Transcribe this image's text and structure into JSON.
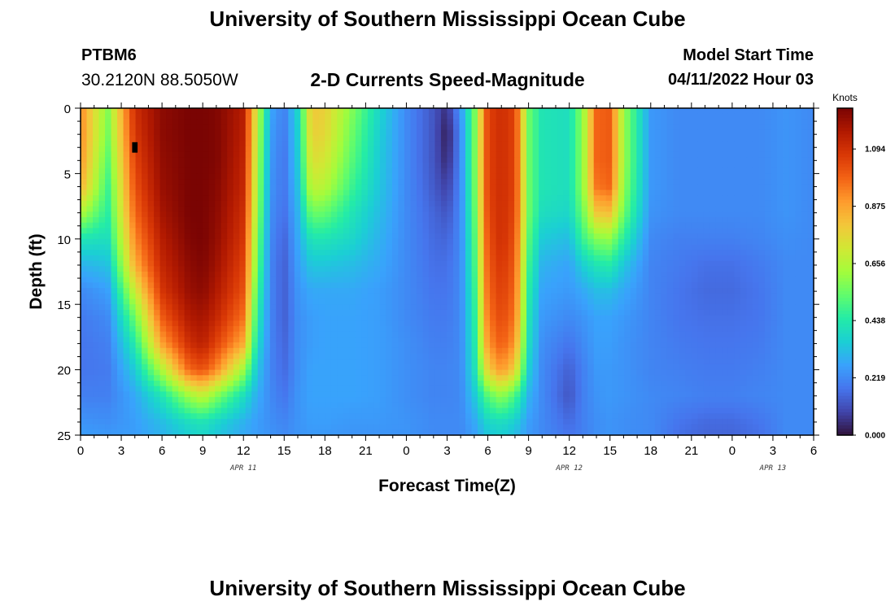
{
  "header": {
    "title": "University of Southern Mississippi Ocean Cube",
    "station_id": "PTBM6",
    "coordinates": "30.2120N  88.5050W",
    "subtitle": "2-D Currents Speed-Magnitude",
    "model_start_label": "Model Start Time",
    "model_start_value": "04/11/2022 Hour 03"
  },
  "footer": {
    "title": "University of Southern Mississippi Ocean Cube"
  },
  "colors": {
    "colormap": [
      "#30123b",
      "#4145ab",
      "#4675ed",
      "#39a2fc",
      "#1bcfd4",
      "#24eca6",
      "#61fc6c",
      "#a4fc3b",
      "#d1e834",
      "#f3c63a",
      "#fe9b2d",
      "#f36315",
      "#d93806",
      "#b11901",
      "#7a0403"
    ],
    "missing": "#000000"
  },
  "chart_data": {
    "type": "heatmap",
    "xlabel": "Forecast Time(Z)",
    "ylabel": "Depth (ft)",
    "xlim": [
      0,
      54
    ],
    "ylim": [
      0,
      25
    ],
    "y_inverted": true,
    "x_tick_labels": [
      "0",
      "3",
      "6",
      "9",
      "12",
      "15",
      "18",
      "21",
      "0",
      "3",
      "6",
      "9",
      "12",
      "15",
      "18",
      "21",
      "0",
      "3",
      "6"
    ],
    "y_tick_labels": [
      "0",
      "5",
      "10",
      "15",
      "20",
      "25"
    ],
    "date_labels": [
      {
        "hour": 12,
        "label": "APR 11"
      },
      {
        "hour": 36,
        "label": "APR 12"
      },
      {
        "hour": 51,
        "label": "APR 13"
      }
    ],
    "colorbar": {
      "label": "Knots",
      "range": [
        0,
        1.25
      ],
      "tick_values": [
        0.0,
        0.219,
        0.438,
        0.656,
        0.875,
        1.094
      ],
      "tick_labels": [
        "0.000",
        "0.219",
        "0.438",
        "0.656",
        "0.875",
        "1.094"
      ]
    },
    "x_hours": [
      0,
      2,
      4,
      6,
      8,
      9,
      10,
      12,
      13,
      14,
      15,
      16,
      17,
      18,
      20,
      22,
      24,
      26,
      27,
      28,
      29,
      30,
      31,
      32,
      33,
      34,
      36,
      37,
      38,
      39,
      40,
      42,
      44,
      46,
      48,
      50,
      52,
      54
    ],
    "depths": [
      0,
      2,
      4,
      6,
      8,
      10,
      12,
      14,
      16,
      18,
      20,
      22,
      24,
      25
    ],
    "values": [
      [
        0.92,
        0.58,
        1.1,
        1.22,
        1.25,
        1.25,
        1.24,
        1.15,
        0.7,
        0.28,
        0.2,
        0.38,
        0.8,
        0.78,
        0.58,
        0.38,
        0.22,
        0.12,
        0.05,
        0.25,
        0.55,
        1.05,
        1.1,
        1.05,
        0.55,
        0.42,
        0.4,
        0.6,
        0.98,
        1.0,
        0.62,
        0.25,
        0.22,
        0.22,
        0.22,
        0.22,
        0.24,
        0.22
      ],
      [
        0.92,
        0.56,
        1.08,
        1.22,
        1.25,
        1.25,
        1.24,
        1.14,
        0.68,
        0.26,
        0.19,
        0.36,
        0.78,
        0.76,
        0.55,
        0.36,
        0.22,
        0.12,
        0.02,
        0.22,
        0.55,
        1.05,
        1.1,
        1.05,
        0.55,
        0.42,
        0.4,
        0.6,
        0.98,
        1.0,
        0.62,
        0.25,
        0.22,
        0.22,
        0.22,
        0.22,
        0.24,
        0.22
      ],
      [
        0.9,
        0.52,
        1.05,
        1.21,
        1.25,
        1.25,
        1.24,
        1.13,
        0.66,
        0.25,
        0.18,
        0.35,
        0.74,
        0.72,
        0.52,
        0.35,
        0.22,
        0.12,
        0.04,
        0.22,
        0.55,
        1.05,
        1.1,
        1.05,
        0.55,
        0.42,
        0.4,
        0.6,
        0.98,
        1.0,
        0.62,
        0.25,
        0.22,
        0.22,
        0.22,
        0.22,
        0.24,
        0.22
      ],
      [
        0.85,
        0.48,
        1.02,
        1.2,
        1.25,
        1.25,
        1.23,
        1.12,
        0.64,
        0.24,
        0.18,
        0.33,
        0.68,
        0.66,
        0.48,
        0.34,
        0.22,
        0.13,
        0.08,
        0.22,
        0.54,
        1.05,
        1.1,
        1.05,
        0.55,
        0.42,
        0.4,
        0.6,
        0.95,
        0.98,
        0.6,
        0.25,
        0.22,
        0.22,
        0.22,
        0.22,
        0.24,
        0.22
      ],
      [
        0.65,
        0.45,
        0.98,
        1.18,
        1.25,
        1.25,
        1.22,
        1.1,
        0.62,
        0.23,
        0.17,
        0.3,
        0.55,
        0.54,
        0.42,
        0.32,
        0.22,
        0.15,
        0.12,
        0.22,
        0.52,
        1.04,
        1.1,
        1.04,
        0.55,
        0.4,
        0.38,
        0.55,
        0.8,
        0.82,
        0.55,
        0.24,
        0.22,
        0.22,
        0.22,
        0.22,
        0.24,
        0.22
      ],
      [
        0.42,
        0.4,
        0.92,
        1.15,
        1.24,
        1.25,
        1.21,
        1.08,
        0.58,
        0.22,
        0.15,
        0.28,
        0.42,
        0.42,
        0.38,
        0.3,
        0.22,
        0.16,
        0.15,
        0.22,
        0.5,
        1.02,
        1.1,
        1.02,
        0.52,
        0.35,
        0.32,
        0.48,
        0.58,
        0.6,
        0.45,
        0.22,
        0.2,
        0.2,
        0.2,
        0.21,
        0.23,
        0.22
      ],
      [
        0.3,
        0.33,
        0.85,
        1.12,
        1.22,
        1.24,
        1.19,
        1.05,
        0.55,
        0.21,
        0.14,
        0.26,
        0.34,
        0.34,
        0.32,
        0.28,
        0.22,
        0.17,
        0.17,
        0.22,
        0.48,
        1.0,
        1.08,
        1.0,
        0.48,
        0.3,
        0.27,
        0.36,
        0.42,
        0.44,
        0.34,
        0.21,
        0.19,
        0.17,
        0.17,
        0.19,
        0.22,
        0.22
      ],
      [
        0.22,
        0.26,
        0.7,
        1.08,
        1.2,
        1.22,
        1.16,
        1.02,
        0.5,
        0.21,
        0.14,
        0.24,
        0.28,
        0.28,
        0.28,
        0.26,
        0.22,
        0.18,
        0.18,
        0.22,
        0.46,
        0.98,
        1.06,
        0.98,
        0.45,
        0.27,
        0.25,
        0.28,
        0.32,
        0.32,
        0.28,
        0.21,
        0.18,
        0.16,
        0.16,
        0.18,
        0.22,
        0.22
      ],
      [
        0.19,
        0.22,
        0.55,
        1.0,
        1.16,
        1.18,
        1.12,
        0.96,
        0.45,
        0.21,
        0.14,
        0.23,
        0.26,
        0.27,
        0.27,
        0.26,
        0.22,
        0.19,
        0.19,
        0.22,
        0.44,
        0.95,
        1.04,
        0.95,
        0.42,
        0.25,
        0.22,
        0.24,
        0.27,
        0.27,
        0.25,
        0.21,
        0.18,
        0.17,
        0.17,
        0.18,
        0.22,
        0.22
      ],
      [
        0.18,
        0.2,
        0.44,
        0.88,
        1.1,
        1.14,
        1.05,
        0.86,
        0.4,
        0.21,
        0.15,
        0.23,
        0.26,
        0.27,
        0.27,
        0.26,
        0.23,
        0.2,
        0.2,
        0.22,
        0.42,
        0.9,
        1.0,
        0.9,
        0.4,
        0.23,
        0.18,
        0.22,
        0.26,
        0.26,
        0.24,
        0.21,
        0.19,
        0.18,
        0.18,
        0.19,
        0.22,
        0.22
      ],
      [
        0.18,
        0.19,
        0.35,
        0.65,
        0.98,
        1.02,
        0.92,
        0.62,
        0.34,
        0.21,
        0.16,
        0.23,
        0.27,
        0.27,
        0.27,
        0.26,
        0.23,
        0.21,
        0.21,
        0.22,
        0.4,
        0.78,
        0.9,
        0.78,
        0.36,
        0.22,
        0.14,
        0.2,
        0.25,
        0.25,
        0.24,
        0.21,
        0.2,
        0.19,
        0.19,
        0.2,
        0.22,
        0.22
      ],
      [
        0.2,
        0.2,
        0.28,
        0.42,
        0.62,
        0.68,
        0.58,
        0.4,
        0.29,
        0.22,
        0.18,
        0.24,
        0.27,
        0.27,
        0.27,
        0.26,
        0.23,
        0.21,
        0.21,
        0.22,
        0.34,
        0.52,
        0.6,
        0.5,
        0.3,
        0.22,
        0.12,
        0.2,
        0.24,
        0.25,
        0.24,
        0.22,
        0.21,
        0.2,
        0.2,
        0.21,
        0.22,
        0.22
      ],
      [
        0.24,
        0.23,
        0.26,
        0.32,
        0.4,
        0.42,
        0.38,
        0.3,
        0.26,
        0.23,
        0.21,
        0.24,
        0.26,
        0.26,
        0.25,
        0.25,
        0.24,
        0.22,
        0.22,
        0.22,
        0.28,
        0.38,
        0.4,
        0.36,
        0.26,
        0.22,
        0.16,
        0.2,
        0.23,
        0.24,
        0.23,
        0.22,
        0.18,
        0.16,
        0.16,
        0.18,
        0.22,
        0.22
      ],
      [
        0.26,
        0.25,
        0.26,
        0.3,
        0.36,
        0.38,
        0.34,
        0.28,
        0.26,
        0.24,
        0.22,
        0.24,
        0.25,
        0.25,
        0.24,
        0.24,
        0.24,
        0.22,
        0.22,
        0.22,
        0.26,
        0.34,
        0.36,
        0.32,
        0.25,
        0.22,
        0.18,
        0.2,
        0.23,
        0.24,
        0.23,
        0.22,
        0.17,
        0.15,
        0.15,
        0.17,
        0.22,
        0.22
      ]
    ],
    "missing_cells": [
      [
        4,
        3
      ]
    ]
  }
}
